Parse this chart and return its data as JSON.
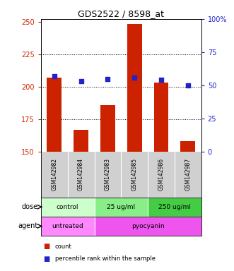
{
  "title": "GDS2522 / 8598_at",
  "samples": [
    "GSM142982",
    "GSM142984",
    "GSM142983",
    "GSM142985",
    "GSM142986",
    "GSM142987"
  ],
  "bar_values": [
    207,
    167,
    186,
    248,
    203,
    158
  ],
  "percentile_values": [
    57,
    53,
    55,
    56,
    54,
    50
  ],
  "bar_color": "#cc2200",
  "dot_color": "#2222cc",
  "ylim_left": [
    150,
    252
  ],
  "ylim_right": [
    0,
    100
  ],
  "yticks_left": [
    150,
    175,
    200,
    225,
    250
  ],
  "yticks_right": [
    0,
    25,
    50,
    75,
    100
  ],
  "grid_values": [
    175,
    200,
    225
  ],
  "dose_labels": [
    {
      "text": "control",
      "span": [
        0,
        2
      ],
      "color": "#ccffcc"
    },
    {
      "text": "25 ug/ml",
      "span": [
        2,
        4
      ],
      "color": "#88ee88"
    },
    {
      "text": "250 ug/ml",
      "span": [
        4,
        6
      ],
      "color": "#44cc44"
    }
  ],
  "agent_labels": [
    {
      "text": "untreated",
      "span": [
        0,
        2
      ],
      "color": "#ff88ff"
    },
    {
      "text": "pyocyanin",
      "span": [
        2,
        6
      ],
      "color": "#ee55ee"
    }
  ],
  "dose_row_label": "dose",
  "agent_row_label": "agent",
  "legend_items": [
    {
      "color": "#cc2200",
      "label": "count"
    },
    {
      "color": "#2222cc",
      "label": "percentile rank within the sample"
    }
  ],
  "background_color": "#ffffff",
  "sample_label_bg": "#d0d0d0",
  "bar_bottom": 150
}
